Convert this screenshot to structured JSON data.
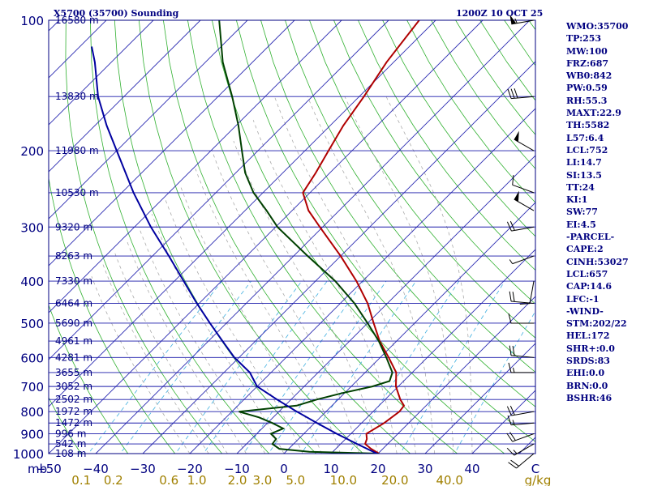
{
  "header": {
    "left": "X5700 (35700) Sounding",
    "right": "1200Z 10 OCT 25"
  },
  "side_panel": [
    "WMO:35700",
    "TP:253",
    "MW:100",
    "FRZ:687",
    "WB0:842",
    "PW:0.59",
    "RH:55.3",
    "MAXT:22.9",
    "TH:5582",
    "L57:6.4",
    "LCL:752",
    "LI:14.7",
    "SI:13.5",
    "TT:24",
    "KI:1",
    "SW:77",
    "EI:4.5",
    "-PARCEL-",
    "CAPE:2",
    "CINH:53027",
    "LCL:657",
    "CAP:14.6",
    "LFC:-1",
    "-WIND-",
    "STM:202/22",
    "HEL:172",
    "SHR+:0.0",
    "SRDS:83",
    "EHI:0.0",
    "BRN:0.0",
    "BSHR:46"
  ],
  "chart_data": {
    "type": "line",
    "diagram": "skew-T log-p",
    "x_units": "°C",
    "y_units": "mb",
    "pressure_ticks": [
      100,
      200,
      300,
      400,
      500,
      600,
      700,
      800,
      900,
      1000
    ],
    "temp_ticks": [
      -50,
      -40,
      -30,
      -20,
      -10,
      0,
      10,
      20,
      30,
      40
    ],
    "pressure_axis_label": "mb",
    "mixing_ratio_ticks": [
      "0.1",
      "0.2",
      "0.6",
      "1.0",
      "2.0",
      "3.0",
      "5.0",
      "10.0",
      "20.0",
      "40.0"
    ],
    "mixing_ratio_unit": "g/kg",
    "height_labels": [
      {
        "p": 100,
        "label": "16580 m"
      },
      {
        "p": 150,
        "label": "13830 m"
      },
      {
        "p": 200,
        "label": "11980 m"
      },
      {
        "p": 250,
        "label": "10530 m"
      },
      {
        "p": 300,
        "label": "9320 m"
      },
      {
        "p": 350,
        "label": "8263 m"
      },
      {
        "p": 400,
        "label": "7330 m"
      },
      {
        "p": 450,
        "label": "6464 m"
      },
      {
        "p": 500,
        "label": "5690 m"
      },
      {
        "p": 550,
        "label": "4961 m"
      },
      {
        "p": 600,
        "label": "4281 m"
      },
      {
        "p": 650,
        "label": "3655 m"
      },
      {
        "p": 700,
        "label": "3052 m"
      },
      {
        "p": 750,
        "label": "2502 m"
      },
      {
        "p": 800,
        "label": "1972 m"
      },
      {
        "p": 850,
        "label": "1472 m"
      },
      {
        "p": 900,
        "label": "996 m"
      },
      {
        "p": 950,
        "label": "542 m"
      },
      {
        "p": 1000,
        "label": "108 m"
      }
    ],
    "series": [
      {
        "role": "temperature",
        "color": "#b00000",
        "points": [
          [
            1000,
            20.2
          ],
          [
            975,
            17.5
          ],
          [
            950,
            15.2
          ],
          [
            925,
            14.5
          ],
          [
            900,
            13.3
          ],
          [
            850,
            14.8
          ],
          [
            800,
            15.6
          ],
          [
            775,
            15.3
          ],
          [
            750,
            13.2
          ],
          [
            700,
            9.5
          ],
          [
            650,
            6.6
          ],
          [
            600,
            1.8
          ],
          [
            550,
            -3.6
          ],
          [
            500,
            -8.7
          ],
          [
            450,
            -14.2
          ],
          [
            400,
            -21.3
          ],
          [
            350,
            -30.0
          ],
          [
            300,
            -40.6
          ],
          [
            275,
            -46.5
          ],
          [
            250,
            -51.5
          ],
          [
            225,
            -53.0
          ],
          [
            200,
            -55.0
          ],
          [
            175,
            -57.2
          ],
          [
            150,
            -59.0
          ],
          [
            125,
            -61.5
          ],
          [
            100,
            -63.5
          ]
        ]
      },
      {
        "role": "dewpoint",
        "color": "#004000",
        "points": [
          [
            1000,
            20.1
          ],
          [
            990,
            5.0
          ],
          [
            975,
            -2.0
          ],
          [
            950,
            -4.5
          ],
          [
            925,
            -4.8
          ],
          [
            900,
            -7.0
          ],
          [
            875,
            -5.5
          ],
          [
            850,
            -9.0
          ],
          [
            825,
            -13.0
          ],
          [
            800,
            -18.5
          ],
          [
            775,
            -7.5
          ],
          [
            750,
            -4.5
          ],
          [
            725,
            -0.5
          ],
          [
            700,
            4.5
          ],
          [
            680,
            7.0
          ],
          [
            650,
            5.8
          ],
          [
            600,
            1.3
          ],
          [
            550,
            -3.8
          ],
          [
            500,
            -10.0
          ],
          [
            450,
            -17.0
          ],
          [
            400,
            -25.8
          ],
          [
            350,
            -37.0
          ],
          [
            300,
            -49.6
          ],
          [
            275,
            -55.4
          ],
          [
            250,
            -62.0
          ],
          [
            225,
            -68.0
          ],
          [
            200,
            -73.4
          ],
          [
            175,
            -79.5
          ],
          [
            150,
            -87.0
          ],
          [
            125,
            -96.3
          ],
          [
            100,
            -106.0
          ]
        ]
      },
      {
        "role": "parcel",
        "color": "#0000a0",
        "points": [
          [
            1000,
            19.8
          ],
          [
            950,
            13.5
          ],
          [
            900,
            7.0
          ],
          [
            850,
            0.5
          ],
          [
            800,
            -6.2
          ],
          [
            750,
            -13.0
          ],
          [
            700,
            -20.0
          ],
          [
            650,
            -24.5
          ],
          [
            600,
            -31.0
          ],
          [
            550,
            -37.0
          ],
          [
            500,
            -43.5
          ],
          [
            450,
            -50.5
          ],
          [
            400,
            -58.0
          ],
          [
            350,
            -66.5
          ],
          [
            300,
            -76.5
          ],
          [
            250,
            -87.5
          ],
          [
            200,
            -100.0
          ],
          [
            175,
            -107.5
          ],
          [
            150,
            -115.5
          ],
          [
            125,
            -123.5
          ],
          [
            115,
            -127.5
          ]
        ]
      }
    ],
    "wind_barbs": [
      {
        "p": 100,
        "dir": 260,
        "spd": 55
      },
      {
        "p": 150,
        "dir": 265,
        "spd": 30
      },
      {
        "p": 200,
        "dir": 300,
        "spd": 50
      },
      {
        "p": 250,
        "dir": 290,
        "spd": 10
      },
      {
        "p": 275,
        "dir": 300,
        "spd": 50
      },
      {
        "p": 300,
        "dir": 260,
        "spd": 20
      },
      {
        "p": 350,
        "dir": 250,
        "spd": 5
      },
      {
        "p": 400,
        "dir": 190,
        "spd": 10
      },
      {
        "p": 450,
        "dir": 275,
        "spd": 20
      },
      {
        "p": 500,
        "dir": 270,
        "spd": 10
      },
      {
        "p": 600,
        "dir": 275,
        "spd": 20
      },
      {
        "p": 650,
        "dir": 270,
        "spd": 15
      },
      {
        "p": 800,
        "dir": 260,
        "spd": 20
      },
      {
        "p": 850,
        "dir": 265,
        "spd": 15
      },
      {
        "p": 900,
        "dir": 250,
        "spd": 20
      },
      {
        "p": 950,
        "dir": 240,
        "spd": 15
      },
      {
        "p": 1000,
        "dir": 230,
        "spd": 20
      }
    ],
    "colors": {
      "isobar": "#1a1aaa",
      "isotherm": "#2828b0",
      "dry_adiabat": "#30b030",
      "moist_adiabat": "#a0a0a0",
      "mixing_ratio": "#40b0e0",
      "axis_text": "#000080",
      "mr_text": "#a08000"
    }
  }
}
